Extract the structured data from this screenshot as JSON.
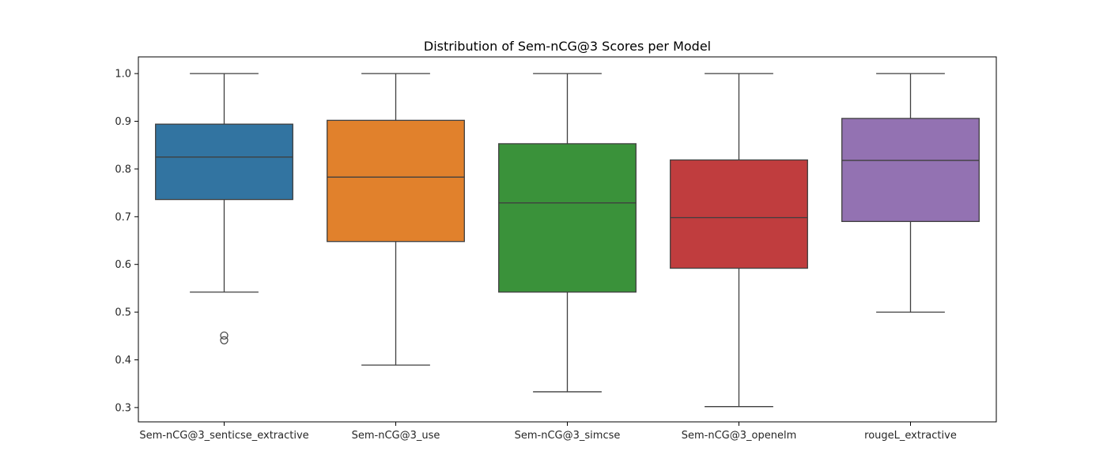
{
  "chart_data": {
    "type": "box",
    "title": "Distribution of Sem-nCG@3 Scores per Model",
    "xlabel": "",
    "ylabel": "",
    "ylim": [
      0.27,
      1.035
    ],
    "yticks": [
      "0.3",
      "0.4",
      "0.5",
      "0.6",
      "0.7",
      "0.8",
      "0.9",
      "1.0"
    ],
    "grid": false,
    "categories": [
      "Sem-nCG@3_senticse_extractive",
      "Sem-nCG@3_use",
      "Sem-nCG@3_simcse",
      "Sem-nCG@3_openelm",
      "rougeL_extractive"
    ],
    "boxes": [
      {
        "whisker_low": 0.542,
        "q1": 0.736,
        "median": 0.825,
        "q3": 0.894,
        "whisker_high": 1.0,
        "outliers": [
          0.451,
          0.441
        ],
        "color": "#3274a1"
      },
      {
        "whisker_low": 0.389,
        "q1": 0.648,
        "median": 0.783,
        "q3": 0.902,
        "whisker_high": 1.0,
        "outliers": [],
        "color": "#e1812c"
      },
      {
        "whisker_low": 0.333,
        "q1": 0.542,
        "median": 0.729,
        "q3": 0.853,
        "whisker_high": 1.0,
        "outliers": [],
        "color": "#3a923a"
      },
      {
        "whisker_low": 0.302,
        "q1": 0.592,
        "median": 0.698,
        "q3": 0.819,
        "whisker_high": 1.0,
        "outliers": [],
        "color": "#c03d3e"
      },
      {
        "whisker_low": 0.5,
        "q1": 0.69,
        "median": 0.818,
        "q3": 0.906,
        "whisker_high": 1.0,
        "outliers": [],
        "color": "#9372b2"
      }
    ]
  }
}
